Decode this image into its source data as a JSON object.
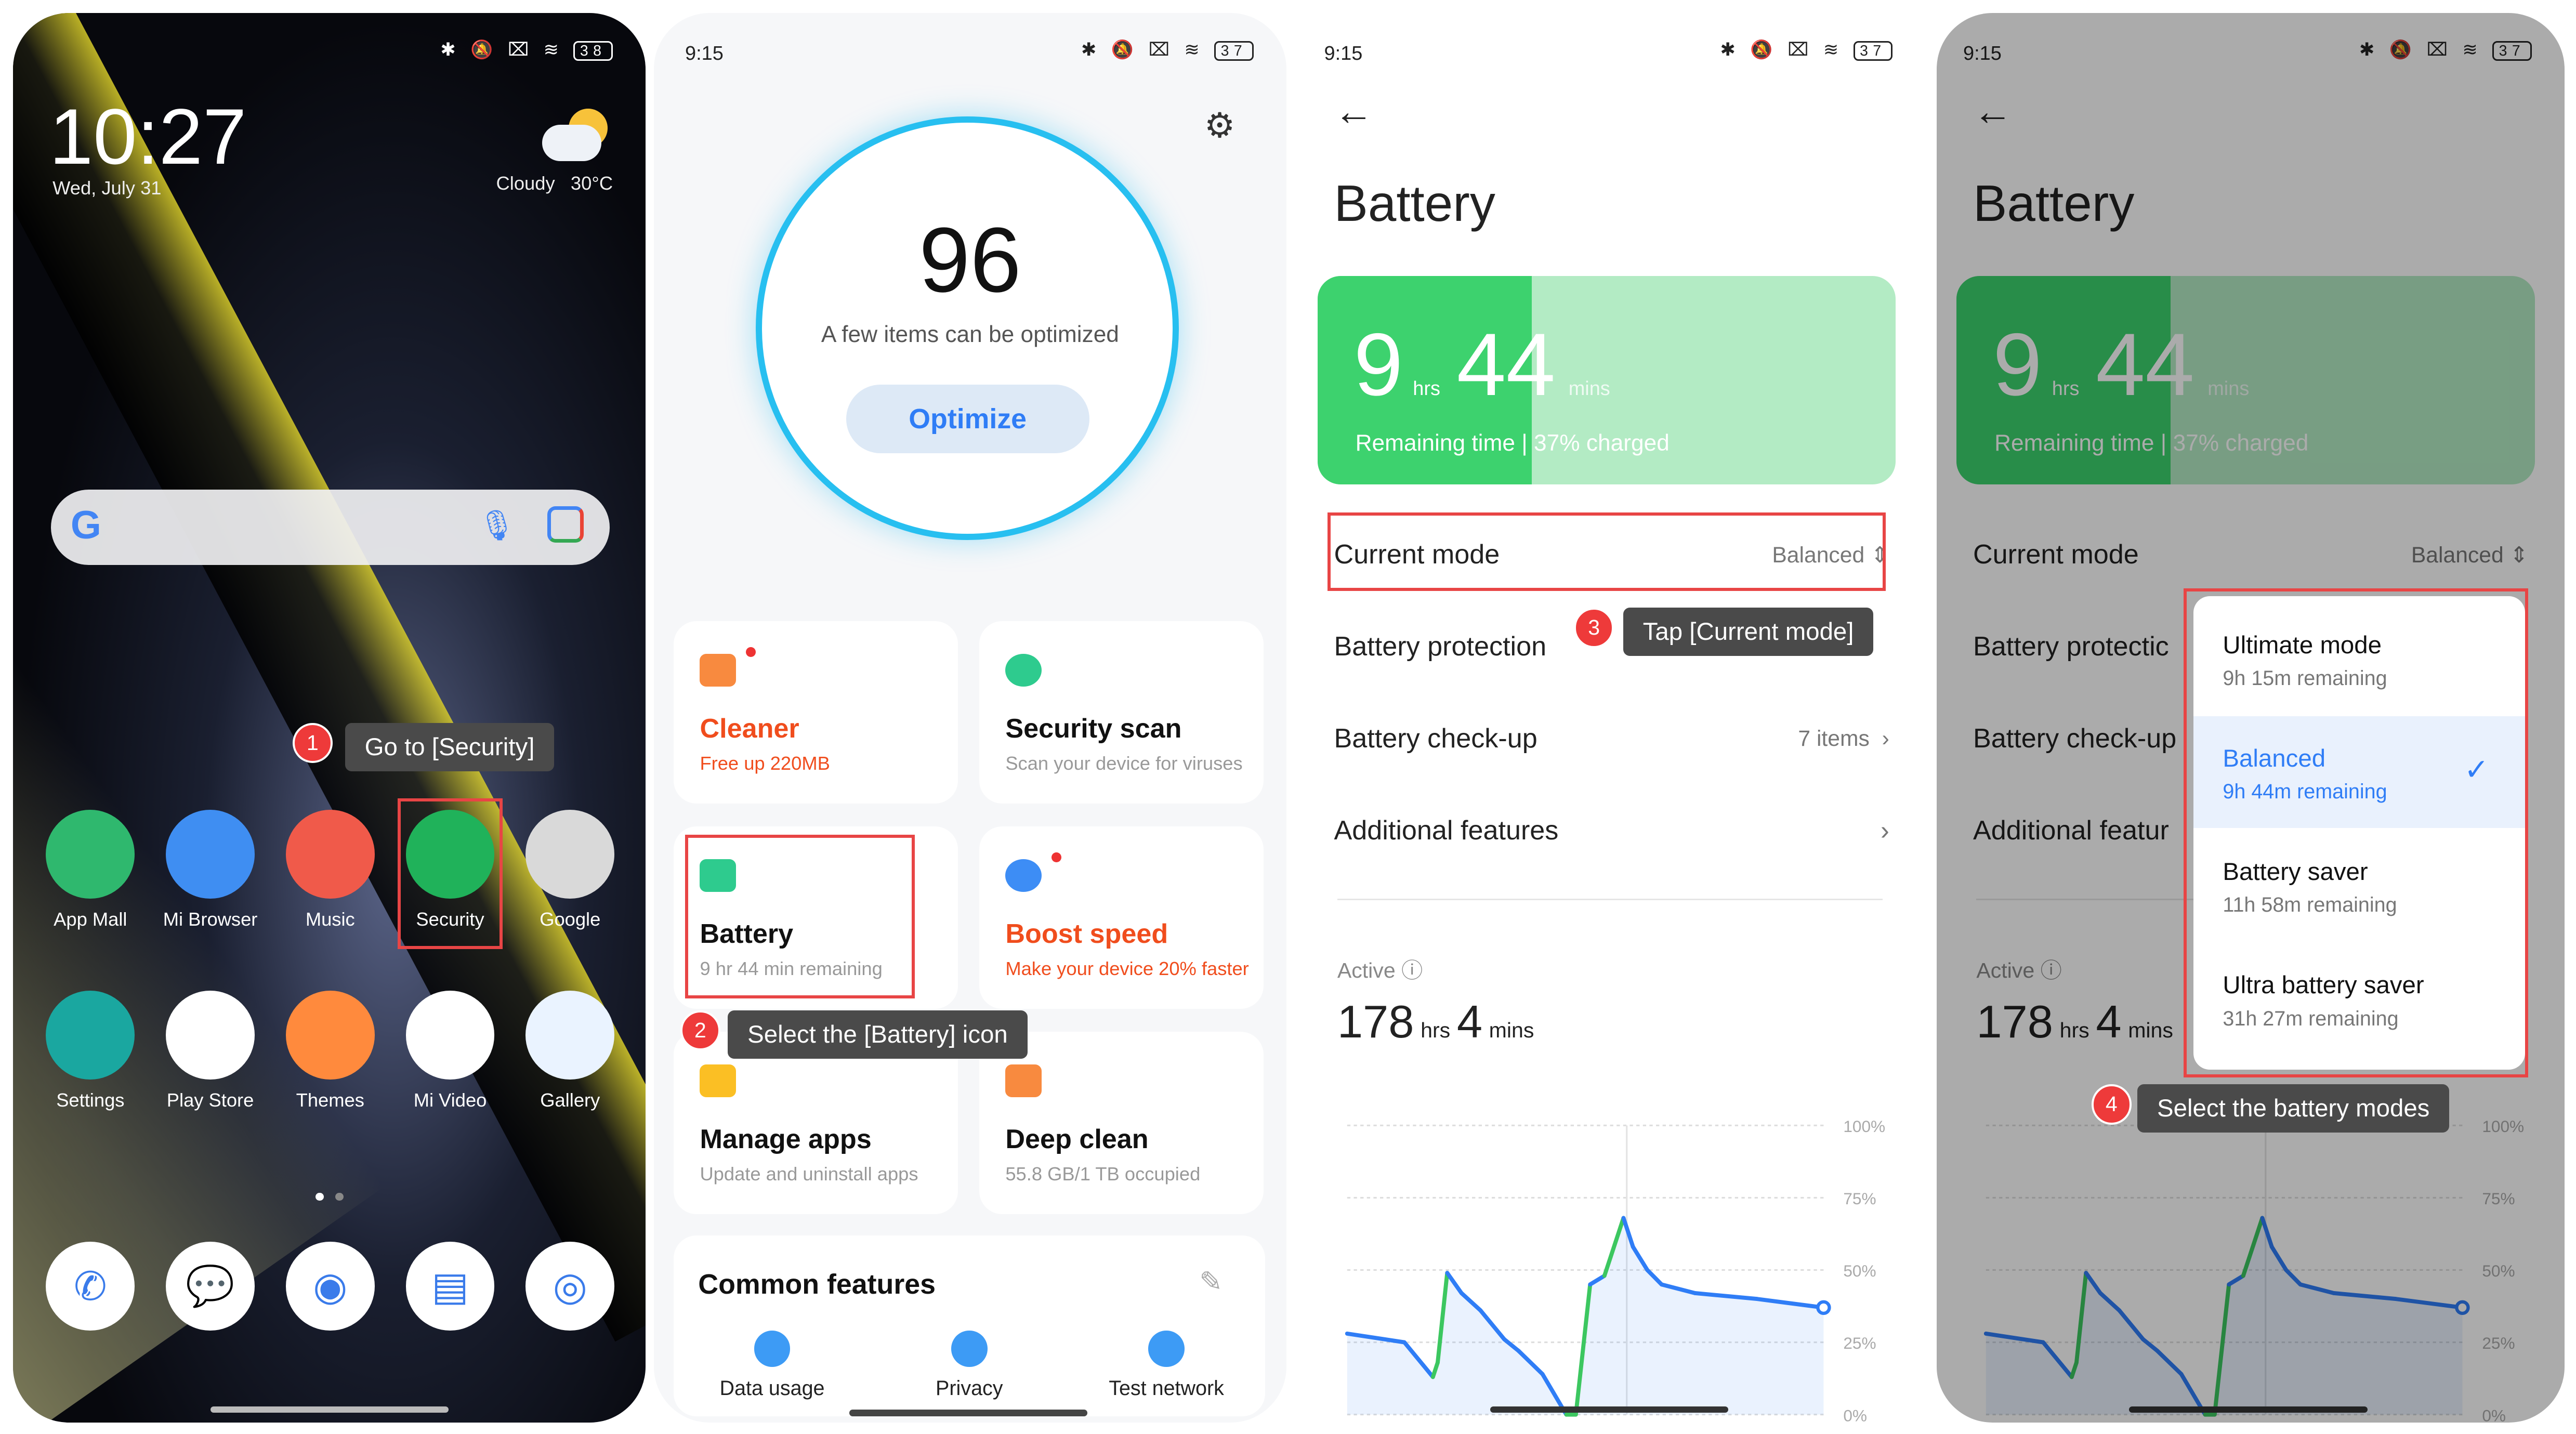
{
  "colors": {
    "accent": "#2f7df6",
    "green": "#3dd26e",
    "annotation_red": "#e84545",
    "orange_red": "#f04d1d"
  },
  "home": {
    "time": "10:27",
    "date": "Wed, July 31",
    "weather": "Cloudy",
    "temp": "30°C",
    "battery_level": "38",
    "apps": [
      {
        "label": "App Mall",
        "icon": "download-icon",
        "color": "#2fb86e"
      },
      {
        "label": "Mi Browser",
        "icon": "browser-icon",
        "color": "#3f8ef2"
      },
      {
        "label": "Music",
        "icon": "music-note-icon",
        "color": "#f05a4a"
      },
      {
        "label": "Security",
        "icon": "shield-bolt-icon",
        "color": "#20b25a"
      },
      {
        "label": "Google",
        "icon": "google-folder-icon",
        "color": "#d9d9d9"
      },
      {
        "label": "Settings",
        "icon": "gear-icon",
        "color": "#1aa7a0"
      },
      {
        "label": "Play Store",
        "icon": "play-store-icon",
        "color": "#ffffff"
      },
      {
        "label": "Themes",
        "icon": "themes-icon",
        "color": "#ff8a3d"
      },
      {
        "label": "Mi Video",
        "icon": "video-play-icon",
        "color": "#ffffff"
      },
      {
        "label": "Gallery",
        "icon": "gallery-icon",
        "color": "#eaf3ff"
      }
    ],
    "dock": [
      {
        "icon": "phone-icon",
        "color": "#ffffff"
      },
      {
        "icon": "messages-icon",
        "color": "#ffffff"
      },
      {
        "icon": "chrome-icon",
        "color": "#ffffff"
      },
      {
        "icon": "notes-icon",
        "color": "#ffffff"
      },
      {
        "icon": "camera-icon",
        "color": "#ffffff"
      }
    ],
    "step": "1",
    "tip": "Go to [Security]"
  },
  "security": {
    "time": "9:15",
    "battery_level": "37",
    "score": "96",
    "score_sub": "A few items can be optimized",
    "optimize": "Optimize",
    "cards": [
      {
        "title": "Cleaner",
        "sub": "Free up 220MB",
        "icon": "trash-icon"
      },
      {
        "title": "Security scan",
        "sub": "Scan your device for viruses",
        "icon": "scan-icon"
      },
      {
        "title": "Battery",
        "sub": "9 hr 44 min  remaining",
        "icon": "battery-icon"
      },
      {
        "title": "Boost speed",
        "sub": "Make your device 20% faster",
        "icon": "rocket-icon"
      },
      {
        "title": "Manage apps",
        "sub": "Update and uninstall apps",
        "icon": "android-icon"
      },
      {
        "title": "Deep clean",
        "sub": "55.8 GB/1 TB occupied",
        "icon": "broom-icon"
      }
    ],
    "common_title": "Common features",
    "common": [
      {
        "label": "Data usage",
        "icon": "water-drop-icon"
      },
      {
        "label": "Privacy",
        "icon": "privacy-icon"
      },
      {
        "label": "Test network",
        "icon": "pulse-icon"
      }
    ],
    "step": "2",
    "tip": "Select the [Battery] icon"
  },
  "battery": {
    "time": "9:15",
    "battery_level": "37",
    "title": "Battery",
    "hours": "9",
    "hrs": "hrs",
    "mins": "44",
    "mins_unit": "mins",
    "remaining": "Remaining time | 37% charged",
    "charged_fraction": 0.37,
    "current_mode_label": "Current mode",
    "current_mode_value": "Balanced",
    "protection": "Battery protection",
    "checkup": "Battery check-up",
    "checkup_value": "7 items",
    "additional": "Additional features",
    "active_label": "Active",
    "active_hours": "178",
    "active_hrs": "hrs",
    "active_mins": "4",
    "active_mins_unit": "mins",
    "step": "3",
    "tip": "Tap [Current mode]"
  },
  "modes": {
    "options": [
      {
        "name": "Ultimate mode",
        "remaining": "9h 15m remaining"
      },
      {
        "name": "Balanced",
        "remaining": "9h 44m remaining",
        "selected": true
      },
      {
        "name": "Battery saver",
        "remaining": "11h 58m remaining"
      },
      {
        "name": "Ultra battery saver",
        "remaining": "31h 27m remaining"
      }
    ],
    "step": "4",
    "tip": "Select the battery modes",
    "visible_labels": {
      "protection": "Battery protectic",
      "checkup": "Battery check-up",
      "additional": "Additional featur"
    }
  },
  "chart_data": {
    "type": "line",
    "ylim": [
      0,
      100
    ],
    "yticks": [
      "100%",
      "75%",
      "50%",
      "25%",
      "0%"
    ],
    "grid": true,
    "x": [
      0,
      12,
      16,
      18,
      19,
      21,
      24,
      28,
      30,
      33,
      36,
      41,
      46,
      48,
      51,
      54,
      58,
      60,
      63,
      66,
      73,
      86,
      100
    ],
    "y": [
      28,
      25,
      17,
      13,
      18,
      49,
      42,
      36,
      32,
      26,
      22,
      14,
      0,
      0,
      45,
      48,
      68,
      58,
      50,
      45,
      42,
      40,
      37
    ],
    "charging": [
      false,
      false,
      false,
      false,
      true,
      true,
      false,
      false,
      false,
      false,
      false,
      false,
      false,
      true,
      true,
      false,
      true,
      false,
      false,
      false,
      false,
      false,
      false
    ]
  }
}
